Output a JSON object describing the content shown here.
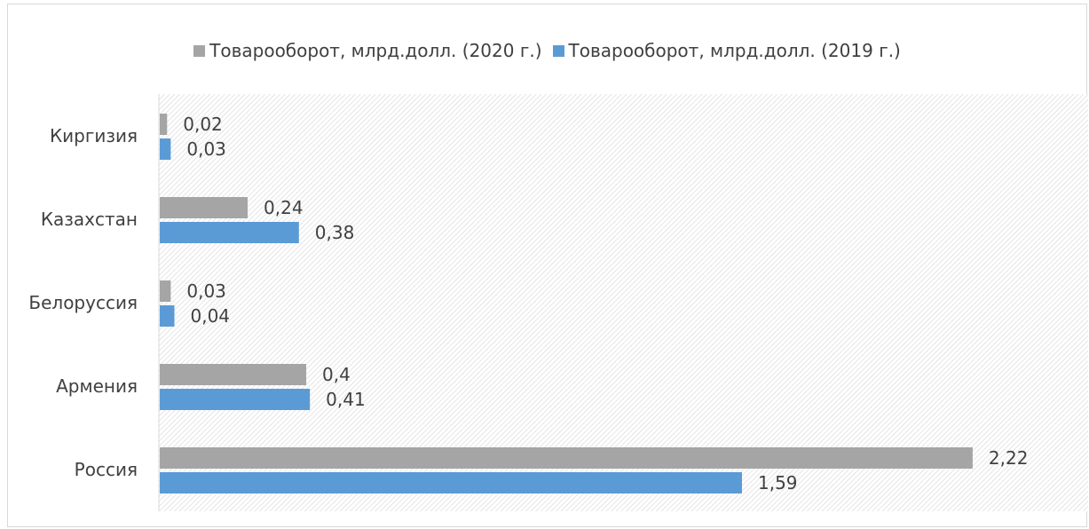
{
  "chart_data": {
    "type": "bar",
    "orientation": "horizontal",
    "categories": [
      "Киргизия",
      "Казахстан",
      "Белоруссия",
      "Армения",
      "Россия"
    ],
    "series": [
      {
        "name": "Товарооборот, млрд.долл. (2020 г.)",
        "values": [
          0.02,
          0.24,
          0.03,
          0.4,
          2.22
        ],
        "labels": [
          "0,02",
          "0,24",
          "0,03",
          "0,4",
          "2,22"
        ],
        "color": "#a5a5a5"
      },
      {
        "name": "Товарооборот, млрд.долл. (2019 г.)",
        "values": [
          0.03,
          0.38,
          0.04,
          0.41,
          1.59
        ],
        "labels": [
          "0,03",
          "0,38",
          "0,04",
          "0,41",
          "1,59"
        ],
        "color": "#5b9bd5"
      }
    ],
    "xlim": [
      0,
      2.5
    ],
    "legend_position": "top",
    "grid": false,
    "plot_background": "diagonal-hatch"
  }
}
